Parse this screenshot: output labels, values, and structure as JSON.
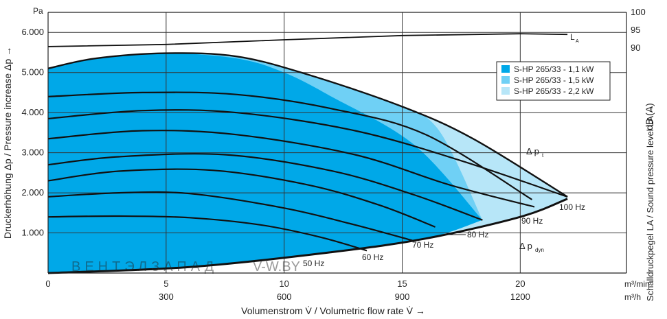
{
  "chart_data": {
    "type": "area",
    "xlabel": "Volumenstrom V̇ / Volumetric flow rate V̇ →",
    "ylabel": "Druckerhöhung Δp / Pressure increase Δp →",
    "y2label": "Schalldruckpegel LA / Sound pressure level LA →",
    "y_unit": "Pa",
    "y2_unit": "dB (A)",
    "x_unit_primary": "m³/min",
    "x_unit_secondary": "m³/h",
    "x_ticks": [
      "0",
      "5",
      "10",
      "15",
      "20"
    ],
    "x_ticks_secondary": [
      "300",
      "600",
      "900",
      "1200"
    ],
    "y_ticks": [
      "1.000",
      "2.000",
      "3.000",
      "4.000",
      "5.000",
      "6.000"
    ],
    "y2_ticks": [
      "100",
      "95",
      "90"
    ],
    "xlim": [
      0,
      24.5
    ],
    "ylim": [
      0,
      6500
    ],
    "y2lim": [
      85,
      100
    ],
    "grid": true,
    "legend_position": "top-right",
    "legend": [
      {
        "label": "S-HP 265/33 - 1,1 kW",
        "color": "#00a8e8"
      },
      {
        "label": "S-HP 265/33 - 1,5 kW",
        "color": "#6fd0f5"
      },
      {
        "label": "S-HP 265/33 - 2,2 kW",
        "color": "#b7e6f8"
      }
    ],
    "annotations": {
      "la": "L",
      "la_sub": "A",
      "dpt": "Δ p",
      "dpt_sub": "t",
      "dpdyn": "Δ p",
      "dpdyn_sub": "dyn"
    },
    "frequency_curves": [
      {
        "label": "50 Hz",
        "points": [
          [
            0,
            1400
          ],
          [
            3,
            1420
          ],
          [
            6,
            1380
          ],
          [
            9,
            1200
          ],
          [
            11.5,
            900
          ],
          [
            13.5,
            560
          ]
        ]
      },
      {
        "label": "60 Hz",
        "points": [
          [
            0,
            1900
          ],
          [
            3,
            2000
          ],
          [
            6,
            1980
          ],
          [
            10,
            1620
          ],
          [
            13,
            1200
          ],
          [
            15.5,
            800
          ]
        ]
      },
      {
        "label": "70 Hz",
        "points": [
          [
            0,
            2300
          ],
          [
            3,
            2540
          ],
          [
            7,
            2560
          ],
          [
            11,
            2200
          ],
          [
            14,
            1700
          ],
          [
            16.4,
            1150
          ]
        ]
      },
      {
        "label": "80 Hz",
        "points": [
          [
            0,
            2700
          ],
          [
            3,
            2900
          ],
          [
            7.5,
            2950
          ],
          [
            12,
            2550
          ],
          [
            15.5,
            1950
          ],
          [
            18.4,
            1320
          ]
        ]
      },
      {
        "label": "90 Hz",
        "points": [
          [
            0,
            3350
          ],
          [
            4,
            3550
          ],
          [
            8,
            3450
          ],
          [
            13,
            2950
          ],
          [
            17,
            2200
          ],
          [
            20.6,
            1650
          ]
        ]
      },
      {
        "label": "100 Hz",
        "points": [
          [
            0,
            3850
          ],
          [
            4,
            4050
          ],
          [
            8,
            4000
          ],
          [
            13,
            3550
          ],
          [
            17.5,
            2800
          ],
          [
            22,
            1900
          ]
        ]
      },
      {
        "label": "",
        "points": [
          [
            0,
            4400
          ],
          [
            4,
            4500
          ],
          [
            8,
            4450
          ],
          [
            12,
            4100
          ],
          [
            16,
            3450
          ],
          [
            20.5,
            1830
          ]
        ]
      }
    ],
    "sound_level_curve": {
      "label": "LA",
      "points": [
        [
          0,
          90.4
        ],
        [
          5,
          91.0
        ],
        [
          10,
          92.3
        ],
        [
          15,
          93.5
        ],
        [
          20,
          94.0
        ],
        [
          22,
          93.8
        ]
      ]
    },
    "pressure_dyn_curve": {
      "points": [
        [
          0,
          0
        ],
        [
          6,
          150
        ],
        [
          12,
          520
        ],
        [
          16,
          860
        ],
        [
          20,
          1400
        ],
        [
          22,
          1850
        ]
      ]
    },
    "envelope_top": {
      "points": [
        [
          0,
          5100
        ],
        [
          2,
          5350
        ],
        [
          5,
          5480
        ],
        [
          8,
          5400
        ],
        [
          11,
          4950
        ],
        [
          15,
          4150
        ],
        [
          18,
          3350
        ],
        [
          22,
          1900
        ]
      ]
    },
    "frequency_series_20": 20
  },
  "watermark": {
    "brand": "ВЕНТЭЛЗАПАД",
    "url": "V-W.BY"
  }
}
